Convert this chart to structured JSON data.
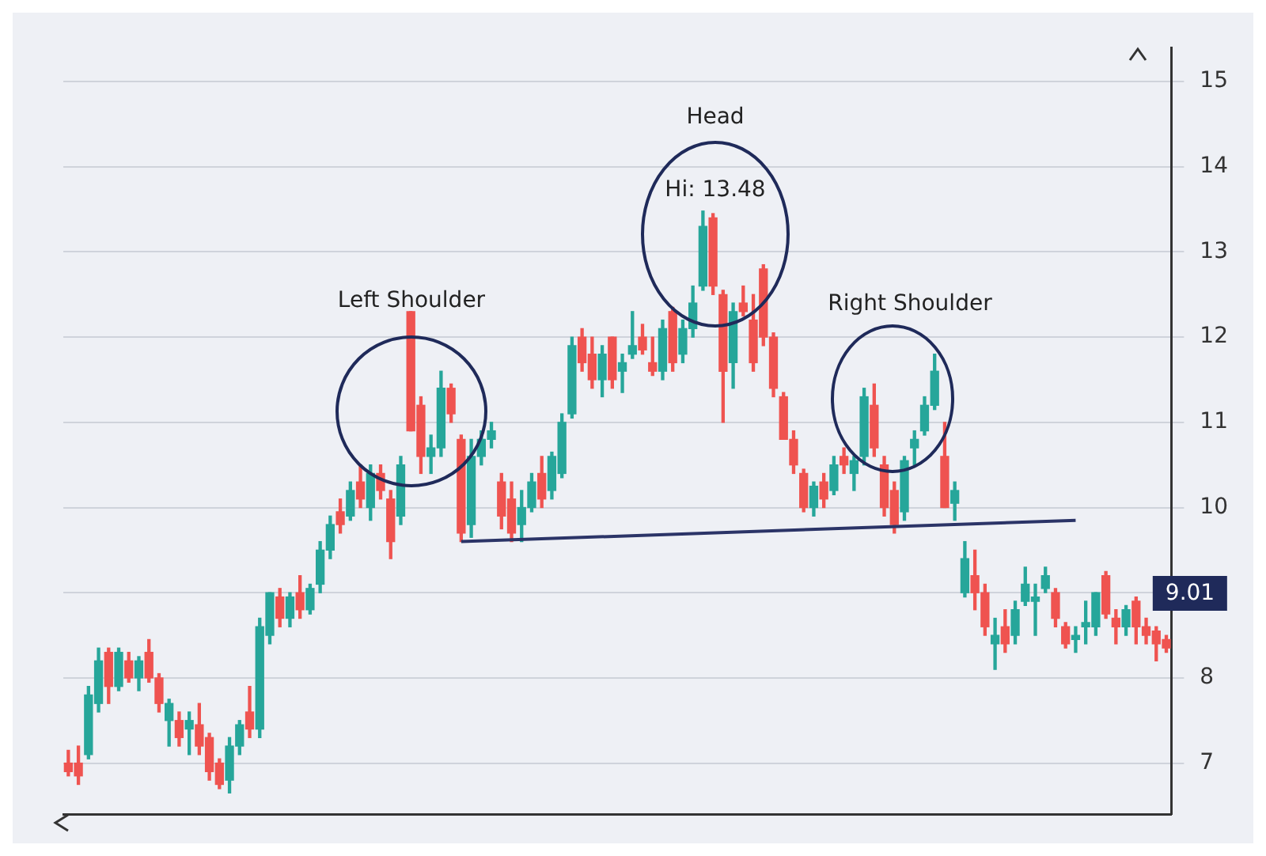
{
  "chart_data": {
    "type": "candlestick",
    "categories": [
      null,
      null,
      null,
      null,
      null,
      null,
      null,
      null,
      null,
      null,
      null,
      null,
      null,
      null,
      null,
      null,
      null,
      null,
      null,
      null,
      null,
      null,
      null,
      null,
      null,
      null,
      null,
      null,
      null,
      null,
      null,
      null,
      null,
      null,
      null,
      null,
      null,
      null,
      null,
      null,
      null,
      null,
      null,
      null,
      null,
      null,
      null,
      null,
      null,
      null,
      null,
      null,
      null,
      null,
      null,
      null,
      null,
      null,
      null,
      null,
      null,
      null,
      null,
      null,
      null,
      null,
      null,
      null,
      null,
      null,
      null,
      null,
      null,
      null,
      null,
      null,
      null,
      null,
      null,
      null,
      null,
      null,
      null,
      null,
      null,
      null,
      null,
      null,
      null,
      null,
      null,
      null,
      null,
      null,
      null,
      null,
      null,
      null,
      null,
      null,
      null,
      null,
      null,
      null,
      null,
      null,
      null,
      null,
      null,
      null
    ],
    "ohlc": [
      [
        7.0,
        7.15,
        6.85,
        6.9
      ],
      [
        7.0,
        7.2,
        6.75,
        6.85
      ],
      [
        7.1,
        7.9,
        7.05,
        7.8
      ],
      [
        7.7,
        8.35,
        7.6,
        8.2
      ],
      [
        8.3,
        8.35,
        7.7,
        7.9
      ],
      [
        7.9,
        8.35,
        7.85,
        8.3
      ],
      [
        8.2,
        8.3,
        7.95,
        8.0
      ],
      [
        8.0,
        8.25,
        7.85,
        8.2
      ],
      [
        8.3,
        8.45,
        7.95,
        8.0
      ],
      [
        8.0,
        8.05,
        7.6,
        7.7
      ],
      [
        7.5,
        7.75,
        7.2,
        7.7
      ],
      [
        7.5,
        7.6,
        7.2,
        7.3
      ],
      [
        7.4,
        7.6,
        7.1,
        7.5
      ],
      [
        7.45,
        7.7,
        7.1,
        7.2
      ],
      [
        7.3,
        7.35,
        6.8,
        6.9
      ],
      [
        7.0,
        7.05,
        6.7,
        6.75
      ],
      [
        6.8,
        7.3,
        6.65,
        7.2
      ],
      [
        7.2,
        7.5,
        7.1,
        7.45
      ],
      [
        7.6,
        7.9,
        7.3,
        7.4
      ],
      [
        7.4,
        8.7,
        7.3,
        8.6
      ],
      [
        8.5,
        9.0,
        8.4,
        9.0
      ],
      [
        8.95,
        9.05,
        8.6,
        8.7
      ],
      [
        8.7,
        9.0,
        8.6,
        8.95
      ],
      [
        9.0,
        9.2,
        8.7,
        8.8
      ],
      [
        8.8,
        9.1,
        8.75,
        9.05
      ],
      [
        9.1,
        9.6,
        9.0,
        9.5
      ],
      [
        9.5,
        9.9,
        9.4,
        9.8
      ],
      [
        9.95,
        10.1,
        9.7,
        9.8
      ],
      [
        9.9,
        10.3,
        9.85,
        10.2
      ],
      [
        10.3,
        10.5,
        10.0,
        10.1
      ],
      [
        10.0,
        10.5,
        9.85,
        10.4
      ],
      [
        10.4,
        10.5,
        10.1,
        10.2
      ],
      [
        10.1,
        10.2,
        9.4,
        9.6
      ],
      [
        9.9,
        10.6,
        9.8,
        10.5
      ],
      [
        12.3,
        12.3,
        10.9,
        10.9
      ],
      [
        11.2,
        11.3,
        10.4,
        10.6
      ],
      [
        10.6,
        10.85,
        10.4,
        10.7
      ],
      [
        10.7,
        11.6,
        10.6,
        11.4
      ],
      [
        11.4,
        11.45,
        11.0,
        11.1
      ],
      [
        10.8,
        10.85,
        9.6,
        9.7
      ],
      [
        9.8,
        10.8,
        9.65,
        10.6
      ],
      [
        10.6,
        10.9,
        10.5,
        10.8
      ],
      [
        10.8,
        11.0,
        10.7,
        10.9
      ],
      [
        10.3,
        10.4,
        9.75,
        9.9
      ],
      [
        10.1,
        10.3,
        9.6,
        9.7
      ],
      [
        9.8,
        10.2,
        9.6,
        10.0
      ],
      [
        10.0,
        10.4,
        9.95,
        10.3
      ],
      [
        10.4,
        10.6,
        10.0,
        10.1
      ],
      [
        10.2,
        10.65,
        10.1,
        10.6
      ],
      [
        10.4,
        11.1,
        10.35,
        11.0
      ],
      [
        11.1,
        12.0,
        11.05,
        11.9
      ],
      [
        12.0,
        12.1,
        11.6,
        11.7
      ],
      [
        11.8,
        12.0,
        11.4,
        11.5
      ],
      [
        11.5,
        11.9,
        11.3,
        11.8
      ],
      [
        12.0,
        12.0,
        11.4,
        11.5
      ],
      [
        11.6,
        11.8,
        11.35,
        11.7
      ],
      [
        11.8,
        12.3,
        11.75,
        11.9
      ],
      [
        12.0,
        12.15,
        11.8,
        11.85
      ],
      [
        11.7,
        12.0,
        11.55,
        11.6
      ],
      [
        11.6,
        12.2,
        11.5,
        12.1
      ],
      [
        12.3,
        12.35,
        11.6,
        11.7
      ],
      [
        11.8,
        12.2,
        11.7,
        12.1
      ],
      [
        12.1,
        12.6,
        12.0,
        12.4
      ],
      [
        12.6,
        13.48,
        12.55,
        13.3
      ],
      [
        13.4,
        13.45,
        12.5,
        12.6
      ],
      [
        12.5,
        12.55,
        11.0,
        11.6
      ],
      [
        11.7,
        12.4,
        11.4,
        12.3
      ],
      [
        12.4,
        12.6,
        12.25,
        12.3
      ],
      [
        12.2,
        12.5,
        11.6,
        11.7
      ],
      [
        12.8,
        12.85,
        11.9,
        12.0
      ],
      [
        12.0,
        12.05,
        11.3,
        11.4
      ],
      [
        11.3,
        11.35,
        10.8,
        10.8
      ],
      [
        10.8,
        10.9,
        10.4,
        10.5
      ],
      [
        10.4,
        10.45,
        9.95,
        10.0
      ],
      [
        10.0,
        10.3,
        9.9,
        10.25
      ],
      [
        10.3,
        10.4,
        10.0,
        10.1
      ],
      [
        10.2,
        10.6,
        10.15,
        10.5
      ],
      [
        10.6,
        10.7,
        10.4,
        10.5
      ],
      [
        10.4,
        10.6,
        10.2,
        10.55
      ],
      [
        10.6,
        11.4,
        10.5,
        11.3
      ],
      [
        11.2,
        11.45,
        10.6,
        10.7
      ],
      [
        10.5,
        10.6,
        9.9,
        10.0
      ],
      [
        10.2,
        10.3,
        9.7,
        9.8
      ],
      [
        9.95,
        10.6,
        9.85,
        10.55
      ],
      [
        10.7,
        10.9,
        10.5,
        10.8
      ],
      [
        10.9,
        11.3,
        10.85,
        11.2
      ],
      [
        11.2,
        11.8,
        11.15,
        11.6
      ],
      [
        10.6,
        11.0,
        10.0,
        10.0
      ],
      [
        10.05,
        10.3,
        9.85,
        10.2
      ],
      [
        9.0,
        9.6,
        8.95,
        9.4
      ],
      [
        9.2,
        9.5,
        8.8,
        9.0
      ],
      [
        9.0,
        9.1,
        8.5,
        8.6
      ],
      [
        8.4,
        8.7,
        8.1,
        8.5
      ],
      [
        8.6,
        8.8,
        8.3,
        8.4
      ],
      [
        8.5,
        8.9,
        8.4,
        8.8
      ],
      [
        8.9,
        9.3,
        8.85,
        9.1
      ],
      [
        8.9,
        9.1,
        8.5,
        8.95
      ],
      [
        9.05,
        9.3,
        9.0,
        9.2
      ],
      [
        9.0,
        9.05,
        8.6,
        8.7
      ],
      [
        8.6,
        8.65,
        8.35,
        8.4
      ],
      [
        8.45,
        8.6,
        8.3,
        8.5
      ],
      [
        8.6,
        8.9,
        8.4,
        8.65
      ],
      [
        8.6,
        9.0,
        8.5,
        9.0
      ],
      [
        9.2,
        9.25,
        8.7,
        8.75
      ],
      [
        8.7,
        8.8,
        8.4,
        8.6
      ],
      [
        8.6,
        8.85,
        8.5,
        8.8
      ],
      [
        8.9,
        8.95,
        8.4,
        8.6
      ],
      [
        8.6,
        8.7,
        8.4,
        8.5
      ],
      [
        8.55,
        8.6,
        8.2,
        8.4
      ],
      [
        8.45,
        8.5,
        8.3,
        8.35
      ]
    ],
    "colors": [
      "#ef5350",
      "#ef5350",
      "#26a69a",
      "#26a69a",
      "#ef5350",
      "#26a69a",
      "#ef5350",
      "#26a69a",
      "#ef5350",
      "#ef5350",
      "#26a69a",
      "#ef5350",
      "#26a69a",
      "#ef5350",
      "#ef5350",
      "#ef5350",
      "#26a69a",
      "#26a69a",
      "#ef5350",
      "#26a69a",
      "#26a69a",
      "#ef5350",
      "#26a69a",
      "#ef5350",
      "#26a69a",
      "#26a69a",
      "#26a69a",
      "#ef5350",
      "#26a69a",
      "#ef5350",
      "#26a69a",
      "#ef5350",
      "#ef5350",
      "#26a69a",
      "#ef5350",
      "#ef5350",
      "#26a69a",
      "#26a69a",
      "#ef5350",
      "#ef5350",
      "#26a69a",
      "#26a69a",
      "#26a69a",
      "#ef5350",
      "#ef5350",
      "#26a69a",
      "#26a69a",
      "#ef5350",
      "#26a69a",
      "#26a69a",
      "#26a69a",
      "#ef5350",
      "#ef5350",
      "#26a69a",
      "#ef5350",
      "#26a69a",
      "#26a69a",
      "#ef5350",
      "#ef5350",
      "#26a69a",
      "#ef5350",
      "#26a69a",
      "#26a69a",
      "#26a69a",
      "#ef5350",
      "#ef5350",
      "#26a69a",
      "#ef5350",
      "#ef5350",
      "#ef5350",
      "#ef5350",
      "#ef5350",
      "#ef5350",
      "#ef5350",
      "#26a69a",
      "#ef5350",
      "#26a69a",
      "#ef5350",
      "#26a69a",
      "#26a69a",
      "#ef5350",
      "#ef5350",
      "#ef5350",
      "#26a69a",
      "#26a69a",
      "#26a69a",
      "#26a69a",
      "#ef5350",
      "#26a69a",
      "#26a69a",
      "#ef5350",
      "#ef5350",
      "#26a69a",
      "#ef5350",
      "#26a69a",
      "#26a69a",
      "#26a69a",
      "#26a69a",
      "#ef5350",
      "#ef5350",
      "#26a69a",
      "#26a69a",
      "#26a69a",
      "#ef5350",
      "#ef5350",
      "#26a69a",
      "#ef5350",
      "#ef5350",
      "#ef5350",
      "#ef5350"
    ],
    "series": [
      {
        "type": "line",
        "color": "#2b3467",
        "values": [
          null,
          null,
          null,
          null,
          null,
          null,
          null,
          null,
          null,
          null,
          null,
          null,
          null,
          null,
          null,
          null,
          null,
          null,
          null,
          null,
          null,
          null,
          null,
          null,
          null,
          null,
          null,
          null,
          null,
          null,
          null,
          null,
          null,
          null,
          null,
          null,
          null,
          null,
          null,
          9.6,
          null,
          null,
          null,
          null,
          null,
          null,
          null,
          null,
          null,
          null,
          null,
          null,
          null,
          null,
          null,
          null,
          null,
          null,
          null,
          null,
          null,
          null,
          null,
          null,
          null,
          null,
          null,
          null,
          null,
          null,
          null,
          null,
          null,
          null,
          null,
          null,
          null,
          null,
          null,
          null,
          null,
          null,
          null,
          null,
          null,
          null,
          null,
          null,
          null,
          null,
          null,
          null,
          null,
          null,
          null,
          null,
          null,
          null,
          null,
          null,
          9.85,
          null,
          null,
          null,
          null,
          null,
          null,
          null,
          null,
          null
        ]
      }
    ],
    "ylim": [
      6.4,
      15.4
    ],
    "yticks": [
      7,
      8,
      {
        "value": 9,
        "label": null
      },
      10,
      11,
      12,
      13,
      14,
      15
    ],
    "grid": "y",
    "annotations": [
      "Head",
      "Hi: 13.48",
      "Left Shoulder",
      "Right Shoulder",
      "9.01"
    ]
  }
}
